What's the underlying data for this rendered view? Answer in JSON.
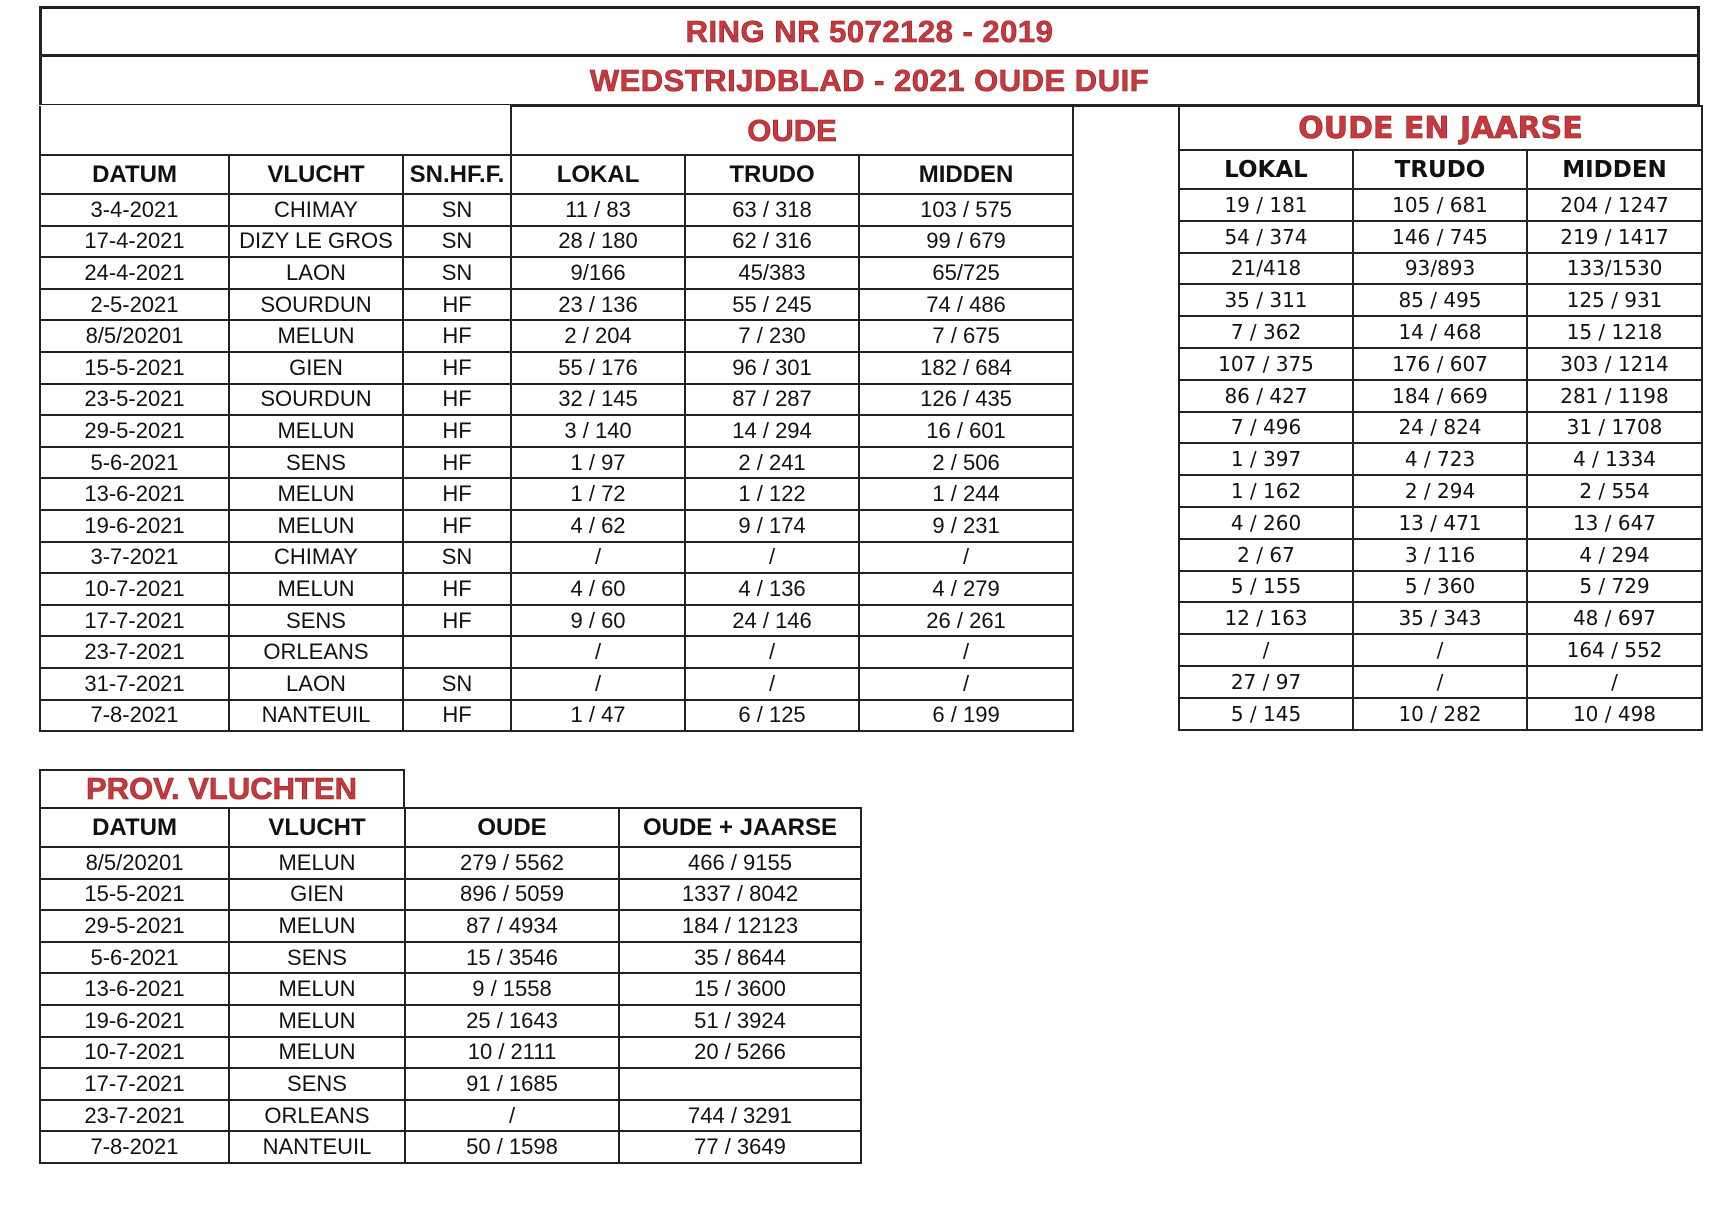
{
  "header": {
    "ring": "RING NR 5072128 - 2019",
    "subtitle": "WEDSTRIJDBLAD - 2021  OUDE DUIF"
  },
  "colors": {
    "title_red": "#c8393d",
    "border": "#222222"
  },
  "oude_table": {
    "group_title": "OUDE",
    "columns": [
      "DATUM",
      "VLUCHT",
      "SN.HF.F.",
      "LOKAL",
      "TRUDO",
      "MIDDEN"
    ],
    "rows": [
      [
        "3-4-2021",
        "CHIMAY",
        "SN",
        "11 / 83",
        "63 / 318",
        "103 / 575"
      ],
      [
        "17-4-2021",
        "DIZY LE GROS",
        "SN",
        "28 / 180",
        "62 / 316",
        "99 / 679"
      ],
      [
        "24-4-2021",
        "LAON",
        "SN",
        "9/166",
        "45/383",
        "65/725"
      ],
      [
        "2-5-2021",
        "SOURDUN",
        "HF",
        "23 / 136",
        "55 / 245",
        "74 / 486"
      ],
      [
        "8/5/20201",
        "MELUN",
        "HF",
        "2 / 204",
        "7 / 230",
        "7 / 675"
      ],
      [
        "15-5-2021",
        "GIEN",
        "HF",
        "55 / 176",
        "96 / 301",
        "182 / 684"
      ],
      [
        "23-5-2021",
        "SOURDUN",
        "HF",
        "32 / 145",
        "87 / 287",
        "126 / 435"
      ],
      [
        "29-5-2021",
        "MELUN",
        "HF",
        "3 / 140",
        "14 / 294",
        "16 / 601"
      ],
      [
        "5-6-2021",
        "SENS",
        "HF",
        "1 / 97",
        "2 / 241",
        "2 / 506"
      ],
      [
        "13-6-2021",
        "MELUN",
        "HF",
        "1 / 72",
        "1 / 122",
        "1 / 244"
      ],
      [
        "19-6-2021",
        "MELUN",
        "HF",
        "4 / 62",
        "9 / 174",
        "9 / 231"
      ],
      [
        "3-7-2021",
        "CHIMAY",
        "SN",
        "/",
        "/",
        "/"
      ],
      [
        "10-7-2021",
        "MELUN",
        "HF",
        "4 / 60",
        "4 / 136",
        "4 / 279"
      ],
      [
        "17-7-2021",
        "SENS",
        "HF",
        "9 / 60",
        "24 / 146",
        "26 / 261"
      ],
      [
        "23-7-2021",
        "ORLEANS",
        "",
        "/",
        "/",
        "/"
      ],
      [
        "31-7-2021",
        "LAON",
        "SN",
        "/",
        "/",
        "/"
      ],
      [
        "7-8-2021",
        "NANTEUIL",
        "HF",
        "1 / 47",
        "6 / 125",
        "6 / 199"
      ]
    ]
  },
  "oude_jaarse_table": {
    "group_title": "OUDE EN JAARSE",
    "columns": [
      "LOKAL",
      "TRUDO",
      "MIDDEN"
    ],
    "rows": [
      [
        "19 / 181",
        "105 / 681",
        "204 / 1247"
      ],
      [
        "54 / 374",
        "146 / 745",
        "219 / 1417"
      ],
      [
        "21/418",
        "93/893",
        "133/1530"
      ],
      [
        "35 / 311",
        "85 / 495",
        "125 / 931"
      ],
      [
        "7 / 362",
        "14 / 468",
        "15 / 1218"
      ],
      [
        "107 / 375",
        "176 / 607",
        "303 / 1214"
      ],
      [
        "86 / 427",
        "184 / 669",
        "281 / 1198"
      ],
      [
        "7 / 496",
        "24 / 824",
        "31 / 1708"
      ],
      [
        "1 / 397",
        "4 / 723",
        "4 / 1334"
      ],
      [
        "1 / 162",
        "2 / 294",
        "2 / 554"
      ],
      [
        "4 / 260",
        "13 / 471",
        "13 / 647"
      ],
      [
        "2 / 67",
        "3 / 116",
        "4 / 294"
      ],
      [
        "5 / 155",
        "5 / 360",
        "5 / 729"
      ],
      [
        "12 / 163",
        "35 / 343",
        "48 / 697"
      ],
      [
        "/",
        "/",
        "164 / 552"
      ],
      [
        "27 / 97",
        "/",
        "/"
      ],
      [
        "5 / 145",
        "10 / 282",
        "10 / 498"
      ]
    ]
  },
  "prov_table": {
    "title": "PROV. VLUCHTEN",
    "columns": [
      "DATUM",
      "VLUCHT",
      "OUDE",
      "OUDE + JAARSE"
    ],
    "rows": [
      [
        "8/5/20201",
        "MELUN",
        "279 / 5562",
        "466 / 9155"
      ],
      [
        "15-5-2021",
        "GIEN",
        "896 / 5059",
        "1337 / 8042"
      ],
      [
        "29-5-2021",
        "MELUN",
        "87 / 4934",
        "184 / 12123"
      ],
      [
        "5-6-2021",
        "SENS",
        "15 / 3546",
        "35 / 8644"
      ],
      [
        "13-6-2021",
        "MELUN",
        "9 / 1558",
        "15 / 3600"
      ],
      [
        "19-6-2021",
        "MELUN",
        "25 / 1643",
        "51 / 3924"
      ],
      [
        "10-7-2021",
        "MELUN",
        "10 / 2111",
        "20 / 5266"
      ],
      [
        "17-7-2021",
        "SENS",
        "91 / 1685",
        ""
      ],
      [
        "23-7-2021",
        "ORLEANS",
        "/",
        "744 / 3291"
      ],
      [
        "7-8-2021",
        "NANTEUIL",
        "50 / 1598",
        "77 / 3649"
      ]
    ]
  }
}
